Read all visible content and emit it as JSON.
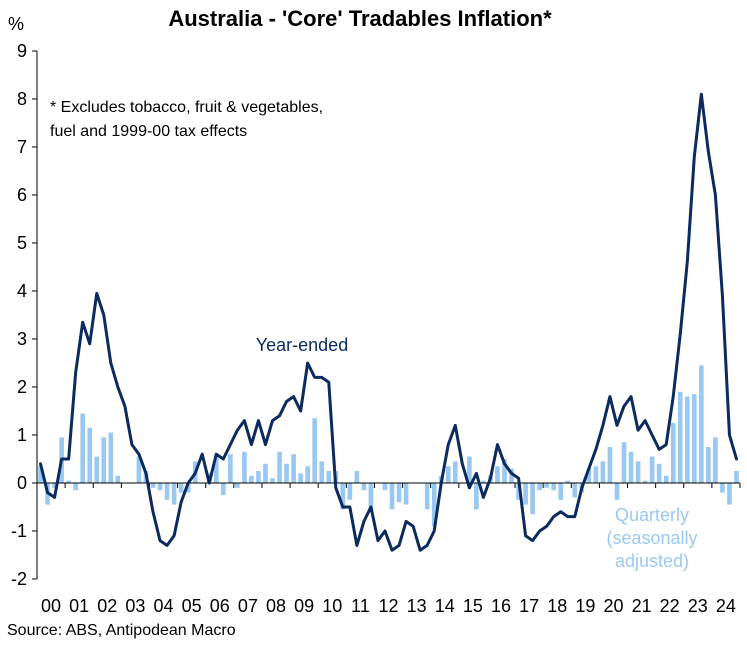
{
  "chart_data": {
    "type": "bar+line",
    "title": "Australia - 'Core' Tradables Inflation*",
    "ylabel": "%",
    "ylim": [
      -2,
      9
    ],
    "yticks": [
      "-2",
      "-1",
      "0",
      "1",
      "2",
      "3",
      "4",
      "5",
      "6",
      "7",
      "8",
      "9"
    ],
    "xticks": [
      "00",
      "01",
      "02",
      "03",
      "04",
      "05",
      "06",
      "07",
      "08",
      "09",
      "10",
      "11",
      "12",
      "13",
      "14",
      "15",
      "16",
      "17",
      "18",
      "19",
      "20",
      "21",
      "22",
      "23",
      "24"
    ],
    "x_start_year": 2000,
    "footnote_lines": [
      "* Excludes tobacco, fruit & vegetables,",
      "fuel and 1999-00 tax effects"
    ],
    "source": "Source: ABS, Antipodean Macro",
    "colors": {
      "year_ended": "#0b2a5e",
      "quarterly": "#99c9f2",
      "axis": "#000000"
    },
    "series": [
      {
        "name": "Year-ended",
        "label_lines": [
          "Year-ended"
        ],
        "kind": "line",
        "values": [
          0.4,
          -0.2,
          -0.3,
          0.5,
          0.5,
          2.3,
          3.35,
          2.9,
          3.95,
          3.5,
          2.5,
          2.0,
          1.6,
          0.8,
          0.6,
          0.2,
          -0.6,
          -1.2,
          -1.3,
          -1.1,
          -0.4,
          0.0,
          0.2,
          0.6,
          0.0,
          0.6,
          0.5,
          0.8,
          1.1,
          1.3,
          0.8,
          1.3,
          0.8,
          1.3,
          1.4,
          1.7,
          1.8,
          1.5,
          2.5,
          2.2,
          2.2,
          2.1,
          -0.1,
          -0.5,
          -0.5,
          -1.3,
          -0.8,
          -0.5,
          -1.2,
          -1.0,
          -1.4,
          -1.3,
          -0.8,
          -0.9,
          -1.4,
          -1.3,
          -1.0,
          0.0,
          0.8,
          1.2,
          0.4,
          -0.1,
          0.2,
          -0.3,
          0.1,
          0.8,
          0.4,
          0.2,
          0.1,
          -1.1,
          -1.2,
          -1.0,
          -0.9,
          -0.7,
          -0.6,
          -0.7,
          -0.7,
          -0.1,
          0.3,
          0.7,
          1.2,
          1.8,
          1.2,
          1.6,
          1.8,
          1.1,
          1.3,
          1.0,
          0.7,
          0.8,
          1.8,
          3.1,
          4.6,
          6.8,
          8.1,
          6.9,
          6.0,
          3.9,
          1.0,
          0.5
        ]
      },
      {
        "name": "Quarterly",
        "label_lines": [
          "Quarterly",
          "(seasonally",
          "adjusted)"
        ],
        "kind": "bar",
        "values": [
          0.35,
          -0.45,
          -0.1,
          0.95,
          0.05,
          -0.15,
          1.45,
          1.15,
          0.55,
          0.95,
          1.05,
          0.15,
          0.0,
          0.0,
          0.55,
          0.25,
          -0.1,
          -0.15,
          -0.35,
          -0.45,
          -0.2,
          -0.2,
          0.45,
          0.0,
          0.2,
          0.55,
          -0.25,
          0.6,
          -0.1,
          0.65,
          0.15,
          0.25,
          0.4,
          0.1,
          0.65,
          0.4,
          0.6,
          0.2,
          0.35,
          1.35,
          0.45,
          0.25,
          0.25,
          -0.55,
          -0.35,
          0.25,
          -0.15,
          -0.6,
          0.0,
          -0.15,
          -0.55,
          -0.4,
          -0.45,
          0.0,
          0.0,
          -0.55,
          -0.9,
          0.15,
          0.35,
          0.45,
          0.0,
          0.55,
          -0.55,
          0.05,
          0.15,
          0.35,
          0.5,
          0.3,
          -0.35,
          -0.45,
          -0.65,
          -0.15,
          -0.1,
          -0.15,
          -0.35,
          0.05,
          -0.3,
          -0.2,
          0.3,
          0.35,
          0.45,
          0.75,
          -0.35,
          0.85,
          0.65,
          0.45,
          0.05,
          0.55,
          0.4,
          0.15,
          1.25,
          1.9,
          1.8,
          1.85,
          2.45,
          0.75,
          0.95,
          -0.2,
          -0.45,
          0.25
        ]
      }
    ]
  }
}
